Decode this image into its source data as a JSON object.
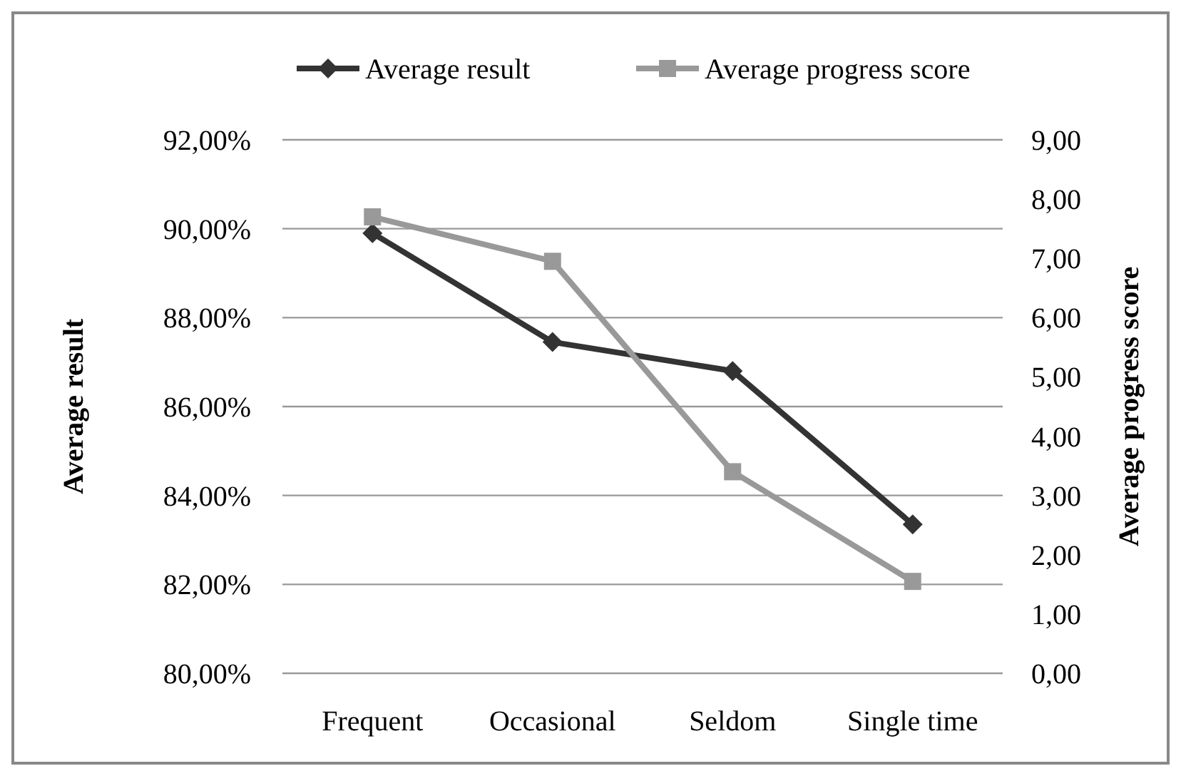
{
  "chart_data": {
    "type": "line",
    "categories": [
      "Frequent",
      "Occasional",
      "Seldom",
      "Single time"
    ],
    "ylabel": "Average result",
    "y2label": "Average progress score",
    "series": [
      {
        "name": "Average result",
        "color": "#333333",
        "marker": "diamond",
        "values": [
          89.9,
          87.45,
          86.8,
          83.35
        ]
      },
      {
        "name": "Average progress score",
        "color": "#999999",
        "marker": "square",
        "axis": "y2",
        "values": [
          7.7,
          6.95,
          3.4,
          1.55
        ]
      }
    ],
    "ylim": [
      80,
      92
    ],
    "yticks": [
      {
        "value": 80,
        "label": "80,00%"
      },
      {
        "value": 82,
        "label": "82,00%"
      },
      {
        "value": 84,
        "label": "84,00%"
      },
      {
        "value": 86,
        "label": "86,00%"
      },
      {
        "value": 88,
        "label": "88,00%"
      },
      {
        "value": 90,
        "label": "90,00%"
      },
      {
        "value": 92,
        "label": "92,00%"
      }
    ],
    "y2lim": [
      0,
      9
    ],
    "y2ticks": [
      {
        "value": 0,
        "label": "0,00"
      },
      {
        "value": 1,
        "label": "1,00"
      },
      {
        "value": 2,
        "label": "2,00"
      },
      {
        "value": 3,
        "label": "3,00"
      },
      {
        "value": 4,
        "label": "4,00"
      },
      {
        "value": 5,
        "label": "5,00"
      },
      {
        "value": 6,
        "label": "6,00"
      },
      {
        "value": 7,
        "label": "7,00"
      },
      {
        "value": 8,
        "label": "8,00"
      },
      {
        "value": 9,
        "label": "9,00"
      }
    ],
    "grid": "y",
    "legend": "top",
    "line_style": "solid"
  }
}
